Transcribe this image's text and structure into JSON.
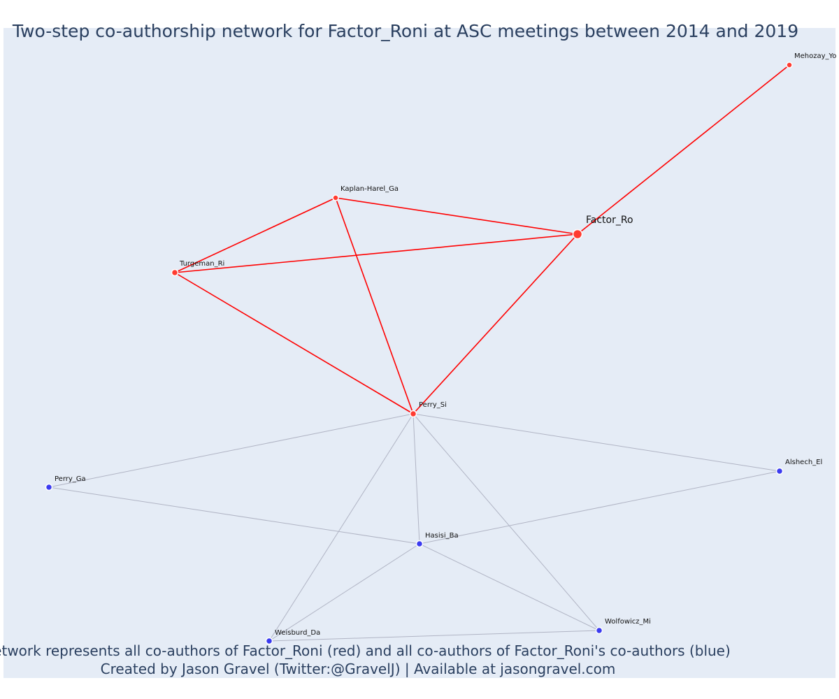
{
  "title": "Two-step co-authorship network for Factor_Roni at ASC meetings between 2014 and 2019",
  "caption_line1": "Network represents all co-authors of Factor_Roni (red) and all co-authors of Factor_Roni's co-authors (blue)",
  "caption_line2": "Created by Jason Gravel (Twitter:@GravelJ) | Available at jasongravel.com",
  "colors": {
    "first_step": "#ff3b30",
    "second_step": "#3b3bf0",
    "first_step_edge": "#ff0000",
    "second_step_edge": "#b0b4c4",
    "background": "#e5ecf6"
  },
  "nodes": [
    {
      "id": "factor_ro",
      "label": "Factor_Ro",
      "group": "focal"
    },
    {
      "id": "mehozay_yo",
      "label": "Mehozay_Yo",
      "group": "red"
    },
    {
      "id": "kaplan_harel_ga",
      "label": "Kaplan-Harel_Ga",
      "group": "red"
    },
    {
      "id": "turgeman_ri",
      "label": "Turgeman_Ri",
      "group": "red"
    },
    {
      "id": "perry_si",
      "label": "Perry_Si",
      "group": "red"
    },
    {
      "id": "perry_ga",
      "label": "Perry_Ga",
      "group": "blue"
    },
    {
      "id": "alshech_el",
      "label": "Alshech_El",
      "group": "blue"
    },
    {
      "id": "hasisi_ba",
      "label": "Hasisi_Ba",
      "group": "blue"
    },
    {
      "id": "weisburd_da",
      "label": "Weisburd_Da",
      "group": "blue"
    },
    {
      "id": "wolfowicz_mi",
      "label": "Wolfowicz_Mi",
      "group": "blue"
    }
  ],
  "edges": [
    {
      "source": "factor_ro",
      "target": "mehozay_yo",
      "group": "red"
    },
    {
      "source": "factor_ro",
      "target": "kaplan_harel_ga",
      "group": "red"
    },
    {
      "source": "factor_ro",
      "target": "turgeman_ri",
      "group": "red"
    },
    {
      "source": "factor_ro",
      "target": "perry_si",
      "group": "red"
    },
    {
      "source": "kaplan_harel_ga",
      "target": "turgeman_ri",
      "group": "red"
    },
    {
      "source": "kaplan_harel_ga",
      "target": "perry_si",
      "group": "red"
    },
    {
      "source": "turgeman_ri",
      "target": "perry_si",
      "group": "red"
    },
    {
      "source": "perry_si",
      "target": "perry_ga",
      "group": "gray"
    },
    {
      "source": "perry_si",
      "target": "alshech_el",
      "group": "gray"
    },
    {
      "source": "perry_si",
      "target": "hasisi_ba",
      "group": "gray"
    },
    {
      "source": "perry_si",
      "target": "weisburd_da",
      "group": "gray"
    },
    {
      "source": "perry_si",
      "target": "wolfowicz_mi",
      "group": "gray"
    },
    {
      "source": "perry_ga",
      "target": "hasisi_ba",
      "group": "gray"
    },
    {
      "source": "hasisi_ba",
      "target": "alshech_el",
      "group": "gray"
    },
    {
      "source": "hasisi_ba",
      "target": "weisburd_da",
      "group": "gray"
    },
    {
      "source": "hasisi_ba",
      "target": "wolfowicz_mi",
      "group": "gray"
    },
    {
      "source": "weisburd_da",
      "target": "wolfowicz_mi",
      "group": "gray"
    }
  ]
}
